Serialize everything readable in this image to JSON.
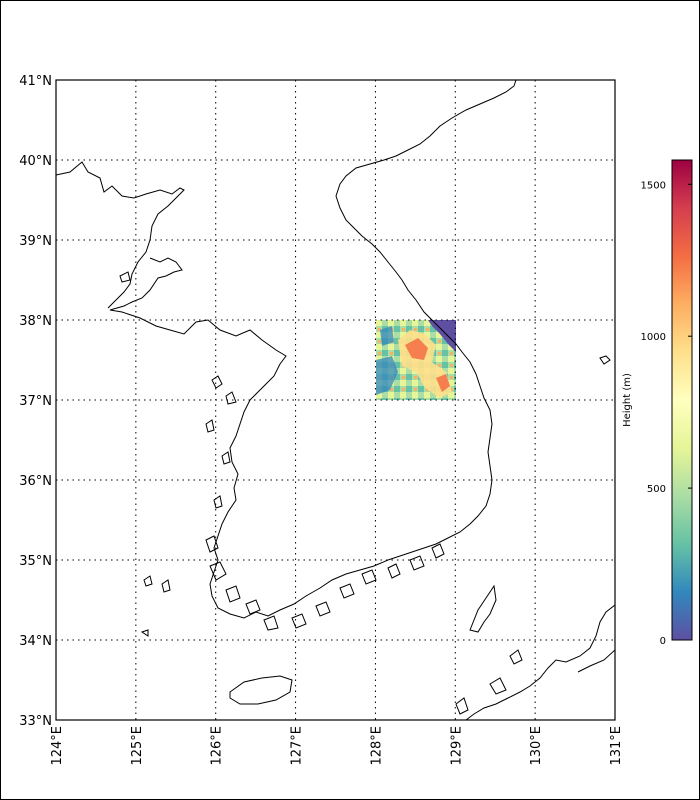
{
  "map": {
    "lon_range": [
      124,
      131
    ],
    "lat_range": [
      33,
      41
    ],
    "lat_ticks": [
      {
        "value": 33,
        "label": "33°N"
      },
      {
        "value": 34,
        "label": "34°N"
      },
      {
        "value": 35,
        "label": "35°N"
      },
      {
        "value": 36,
        "label": "36°N"
      },
      {
        "value": 37,
        "label": "37°N"
      },
      {
        "value": 38,
        "label": "38°N"
      },
      {
        "value": 39,
        "label": "39°N"
      },
      {
        "value": 40,
        "label": "40°N"
      },
      {
        "value": 41,
        "label": "41°N"
      }
    ],
    "lon_ticks": [
      {
        "value": 124,
        "label": "124°E"
      },
      {
        "value": 125,
        "label": "125°E"
      },
      {
        "value": 126,
        "label": "126°E"
      },
      {
        "value": 127,
        "label": "127°E"
      },
      {
        "value": 128,
        "label": "128°E"
      },
      {
        "value": 129,
        "label": "129°E"
      },
      {
        "value": 130,
        "label": "130°E"
      },
      {
        "value": 131,
        "label": "131°E"
      }
    ],
    "gridlines": "dotted",
    "coastline_color": "#000000",
    "terrain_patch": {
      "lon": [
        128,
        129
      ],
      "lat": [
        37,
        38
      ],
      "variable": "Height",
      "sea_color": "#5e4fa2"
    }
  },
  "colorbar": {
    "label": "Height (m)",
    "min": 0,
    "max": 1580,
    "ticks": [
      {
        "value": 0,
        "label": "0"
      },
      {
        "value": 500,
        "label": "500"
      },
      {
        "value": 1000,
        "label": "1000"
      },
      {
        "value": 1500,
        "label": "1500"
      }
    ],
    "colormap": [
      "#5e4fa2",
      "#3288bd",
      "#66c2a5",
      "#abdda4",
      "#e6f598",
      "#ffffbf",
      "#fee08b",
      "#fdae61",
      "#f46d43",
      "#d53e4f",
      "#9e0142"
    ]
  }
}
